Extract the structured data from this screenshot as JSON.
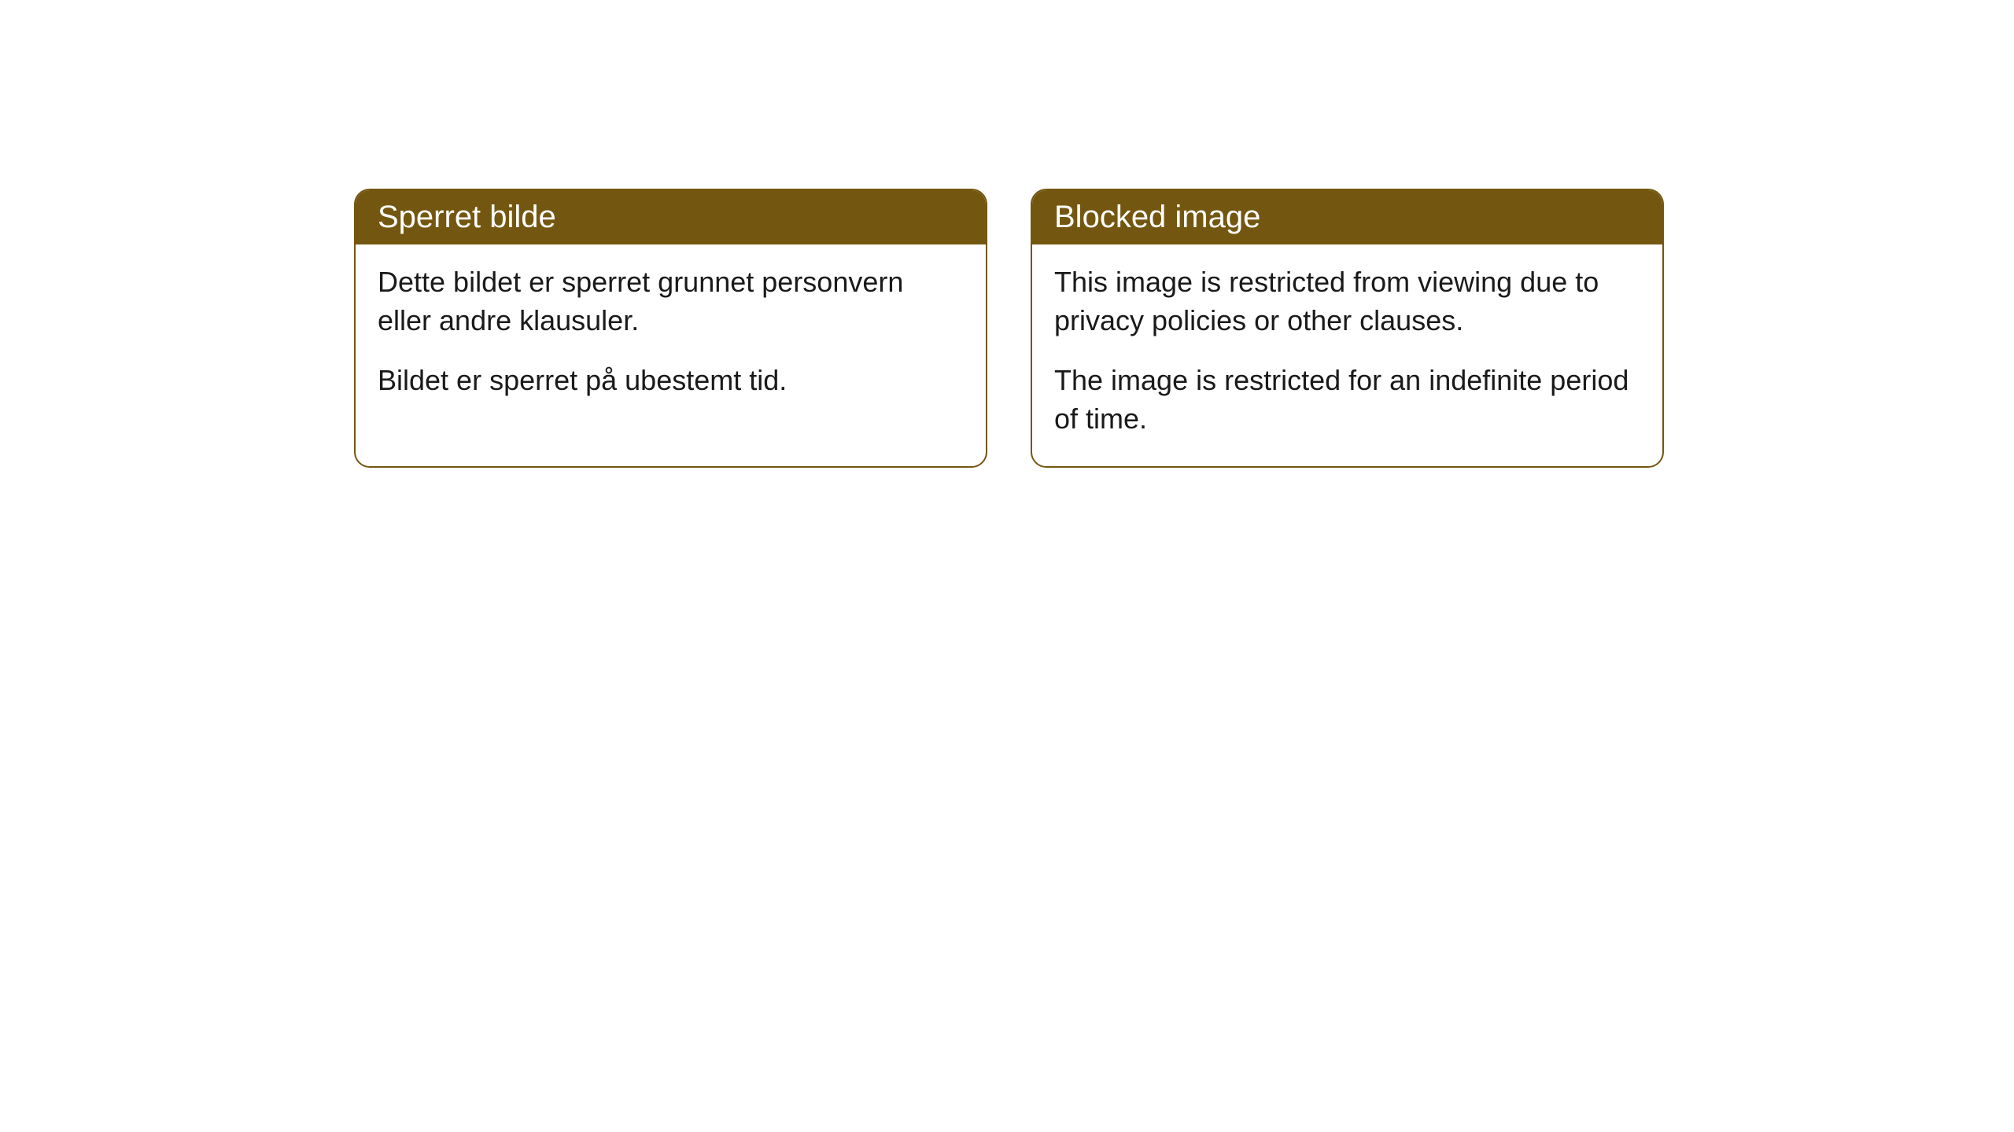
{
  "cards": [
    {
      "title": "Sperret bilde",
      "paragraph1": "Dette bildet er sperret grunnet personvern eller andre klausuler.",
      "paragraph2": "Bildet er sperret på ubestemt tid."
    },
    {
      "title": "Blocked image",
      "paragraph1": "This image is restricted from viewing due to privacy policies or other clauses.",
      "paragraph2": "The image is restricted for an indefinite period of time."
    }
  ],
  "style": {
    "header_bg": "#735710",
    "header_text_color": "#ffffff",
    "border_color": "#735710",
    "body_bg": "#ffffff",
    "body_text_color": "#1a1a1a",
    "border_radius": 20,
    "header_fontsize": 40,
    "body_fontsize": 36
  }
}
